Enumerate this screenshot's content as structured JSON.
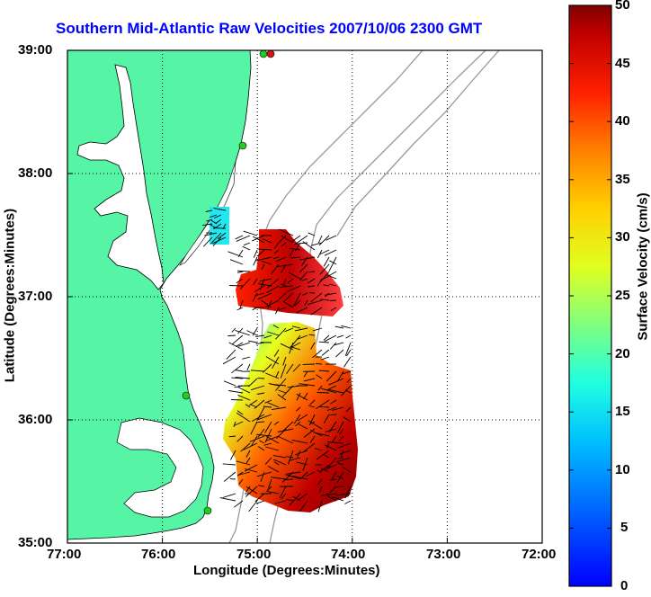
{
  "title": "Southern Mid-Atlantic Raw Velocities 2007/10/06 2300 GMT",
  "x_axis": {
    "label": "Longitude (Degrees:Minutes)",
    "ticks": [
      "77:00",
      "76:00",
      "75:00",
      "74:00",
      "73:00",
      "72:00"
    ]
  },
  "y_axis": {
    "label": "Latitude (Degrees:Minutes)",
    "ticks": [
      "39:00",
      "38:00",
      "37:00",
      "36:00",
      "35:00"
    ]
  },
  "colorbar": {
    "label": "Surface Velocity (cm/s)",
    "ticks": [
      "50",
      "45",
      "40",
      "35",
      "30",
      "25",
      "20",
      "15",
      "10",
      "5",
      "0"
    ],
    "min": 0,
    "max": 50
  },
  "colors": {
    "title": "#0000ff",
    "land": "#55f5a5",
    "water": "#ffffff",
    "bathymetry": "#999999",
    "station_green": "#22cc22",
    "station_red": "#dd1111"
  },
  "chart_data": {
    "type": "heatmap",
    "map_extent": {
      "lon": [
        -77,
        -72
      ],
      "lat": [
        35,
        39
      ]
    },
    "grid": "dotted",
    "colormap": "jet",
    "velocity_range_cm_s": [
      0,
      50
    ],
    "regions": [
      {
        "name": "",
        "lon": [
          -75.72,
          -75.53
        ],
        "lat": [
          37.44,
          37.72
        ],
        "speed": 15
      },
      {
        "name": "",
        "lon": [
          -75.2,
          -74.1
        ],
        "lat": [
          36.8,
          37.5
        ],
        "speed": 45
      },
      {
        "name": "",
        "lon": [
          -75.3,
          -74.0
        ],
        "lat": [
          35.3,
          36.6
        ],
        "speed": 40
      }
    ]
  }
}
